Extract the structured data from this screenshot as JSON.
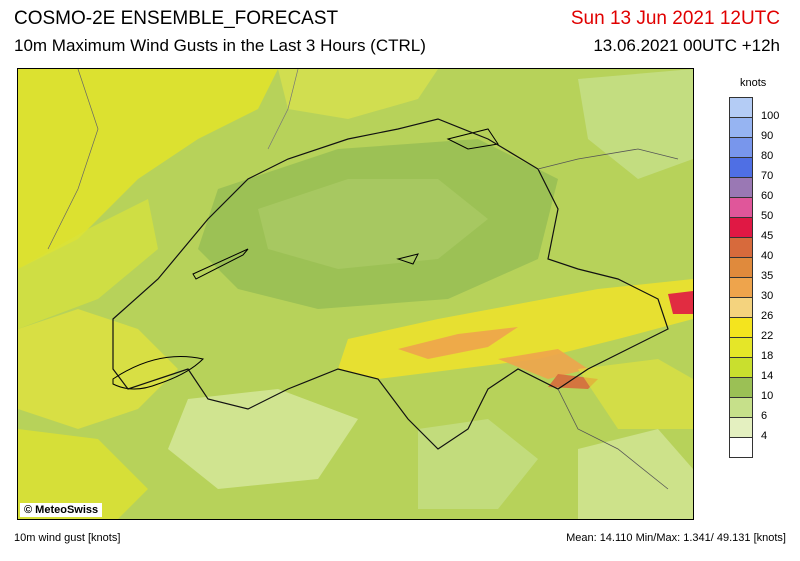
{
  "header": {
    "title": "COSMO-2E ENSEMBLE_FORECAST",
    "subtitle": "10m Maximum Wind Gusts in the Last 3 Hours (CTRL)",
    "valid_time": "Sun 13 Jun 2021 12UTC",
    "run_time": "13.06.2021 00UTC +12h"
  },
  "map": {
    "credit": "© MeteoSwiss"
  },
  "legend": {
    "units": "knots",
    "classes": [
      {
        "label": "100",
        "color": "#b4ccf5"
      },
      {
        "label": "90",
        "color": "#96b4f2"
      },
      {
        "label": "80",
        "color": "#7896ec"
      },
      {
        "label": "70",
        "color": "#4f6fe4"
      },
      {
        "label": "60",
        "color": "#9a78b4"
      },
      {
        "label": "50",
        "color": "#e0569a"
      },
      {
        "label": "45",
        "color": "#e01844"
      },
      {
        "label": "40",
        "color": "#d76a3c"
      },
      {
        "label": "35",
        "color": "#e08a3c"
      },
      {
        "label": "30",
        "color": "#eea44c"
      },
      {
        "label": "26",
        "color": "#f4d37e"
      },
      {
        "label": "22",
        "color": "#f4e41e"
      },
      {
        "label": "18",
        "color": "#e5e628"
      },
      {
        "label": "14",
        "color": "#c9df2e"
      },
      {
        "label": "10",
        "color": "#9bc055"
      },
      {
        "label": "6",
        "color": "#c6e08a"
      },
      {
        "label": "4",
        "color": "#e4f0c0"
      },
      {
        "label": "",
        "color": "#ffffff"
      }
    ]
  },
  "footer": {
    "left": "10m wind gust [knots]",
    "right": "Mean: 14.110 Min/Max:  1.341/ 49.131 [knots]"
  }
}
